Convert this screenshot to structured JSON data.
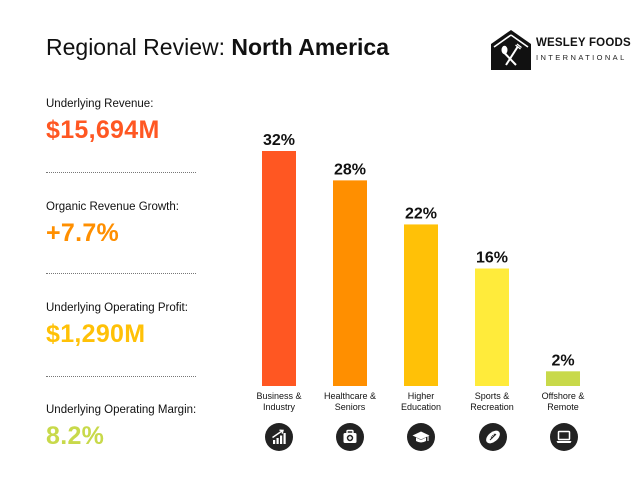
{
  "header": {
    "title_light": "Regional Review: ",
    "title_bold": "North America"
  },
  "logo": {
    "name": "WESLEY FOODS",
    "sub": "INTERNATIONAL"
  },
  "colors": {
    "revenue": "#ff5722",
    "growth": "#ff8f00",
    "profit": "#ffc107",
    "margin": "#c8d94a"
  },
  "kpis": [
    {
      "label": "Underlying Revenue:",
      "value": "$15,694M"
    },
    {
      "label": "Organic Revenue Growth:",
      "value": "+7.7%"
    },
    {
      "label": "Underlying Operating Profit:",
      "value": "$1,290M"
    },
    {
      "label": "Underlying Operating Margin:",
      "value": "8.2%"
    }
  ],
  "chart_data": {
    "type": "bar",
    "title": "",
    "xlabel": "",
    "ylabel": "",
    "ylim": [
      0,
      32
    ],
    "grid": false,
    "categories": [
      [
        "Business &",
        "Industry"
      ],
      [
        "Healthcare &",
        "Seniors"
      ],
      [
        "Higher",
        "Education"
      ],
      [
        "Sports &",
        "Recreation"
      ],
      [
        "Offshore &",
        "Remote"
      ]
    ],
    "values": [
      32,
      28,
      22,
      16,
      2
    ],
    "value_labels": [
      "32%",
      "28%",
      "22%",
      "16%",
      "2%"
    ],
    "colors": [
      "#ff5722",
      "#ff8f00",
      "#ffc107",
      "#ffeb3b",
      "#c8d94a"
    ],
    "icons": [
      "bar-chart-icon",
      "first-aid-kit-icon",
      "graduation-cap-icon",
      "football-icon",
      "laptop-icon"
    ]
  }
}
